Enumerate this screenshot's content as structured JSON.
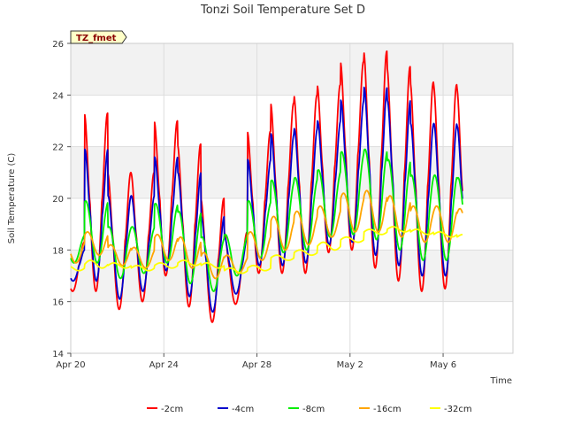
{
  "chart_data": {
    "type": "line",
    "title": "Tonzi Soil Temperature Set D",
    "xlabel": "Time",
    "ylabel": "Soil Temperature (C)",
    "badge": "TZ_fmet",
    "x_range": [
      "2023-04-20",
      "2023-05-09"
    ],
    "xticks": [
      {
        "date": "2023-04-20",
        "label": "Apr 20"
      },
      {
        "date": "2023-04-24",
        "label": "Apr 24"
      },
      {
        "date": "2023-04-28",
        "label": "Apr 28"
      },
      {
        "date": "2023-05-02",
        "label": "May 2"
      },
      {
        "date": "2023-05-06",
        "label": "May 6"
      }
    ],
    "ylim": [
      14,
      26
    ],
    "yticks": [
      14,
      16,
      18,
      20,
      22,
      24,
      26
    ],
    "grid": true,
    "background_bands": true,
    "legend_position": "bottom",
    "dates": [
      "2023-04-20",
      "2023-04-21",
      "2023-04-22",
      "2023-04-23",
      "2023-04-24",
      "2023-04-25",
      "2023-04-26",
      "2023-04-27",
      "2023-04-28",
      "2023-04-29",
      "2023-04-30",
      "2023-05-01",
      "2023-05-02",
      "2023-05-03",
      "2023-05-04",
      "2023-05-05",
      "2023-05-06",
      "2023-05-07"
    ],
    "series": [
      {
        "name": "-2cm",
        "color": "#ff0000",
        "max": [
          18.3,
          23.3,
          21.0,
          21.0,
          23.0,
          22.1,
          20.0,
          18.7,
          22.6,
          23.7,
          24.0,
          24.4,
          25.3,
          25.7,
          25.1,
          24.5,
          24.4,
          24.3
        ],
        "min": [
          16.4,
          16.4,
          15.7,
          16.0,
          17.0,
          15.8,
          15.2,
          15.9,
          17.1,
          17.1,
          17.1,
          17.9,
          18.0,
          17.3,
          16.8,
          16.4,
          16.5,
          16.5
        ]
      },
      {
        "name": "-4cm",
        "color": "#0000cc",
        "max": [
          18.0,
          21.9,
          20.1,
          20.1,
          21.6,
          21.0,
          19.3,
          18.5,
          21.5,
          22.5,
          22.7,
          23.0,
          23.8,
          24.3,
          23.8,
          22.9,
          22.9,
          22.8
        ],
        "min": [
          16.8,
          16.8,
          16.1,
          16.4,
          17.2,
          16.2,
          15.6,
          16.3,
          17.4,
          17.4,
          17.5,
          18.2,
          18.3,
          17.8,
          17.4,
          17.0,
          17.0,
          17.0
        ]
      },
      {
        "name": "-8cm",
        "color": "#00ee00",
        "max": [
          18.6,
          19.9,
          18.9,
          18.9,
          19.8,
          19.5,
          18.5,
          18.6,
          19.9,
          20.7,
          20.8,
          21.1,
          21.8,
          21.9,
          21.5,
          20.9,
          20.9,
          20.8
        ],
        "min": [
          17.5,
          17.5,
          16.9,
          17.1,
          17.5,
          16.7,
          16.4,
          17.0,
          17.7,
          17.9,
          18.0,
          18.5,
          18.6,
          18.4,
          18.0,
          17.6,
          17.6,
          17.6
        ]
      },
      {
        "name": "-16cm",
        "color": "#ffa500",
        "max": [
          18.4,
          18.7,
          18.2,
          18.1,
          18.6,
          18.5,
          17.9,
          17.8,
          18.7,
          19.3,
          19.5,
          19.7,
          20.2,
          20.3,
          20.1,
          19.7,
          19.7,
          19.6
        ],
        "min": [
          17.5,
          17.8,
          17.4,
          17.3,
          17.6,
          17.3,
          16.9,
          17.1,
          17.6,
          18.0,
          18.2,
          18.5,
          18.7,
          18.7,
          18.5,
          18.3,
          18.3,
          18.2
        ]
      },
      {
        "name": "-32cm",
        "color": "#ffff00",
        "max": [
          17.4,
          17.6,
          17.5,
          17.4,
          17.5,
          17.6,
          17.5,
          17.3,
          17.4,
          17.8,
          18.0,
          18.3,
          18.5,
          18.8,
          18.9,
          18.8,
          18.7,
          18.6
        ],
        "min": [
          17.2,
          17.3,
          17.3,
          17.2,
          17.3,
          17.4,
          17.3,
          17.1,
          17.2,
          17.6,
          17.8,
          18.0,
          18.3,
          18.6,
          18.7,
          18.6,
          18.5,
          18.4
        ]
      }
    ]
  }
}
